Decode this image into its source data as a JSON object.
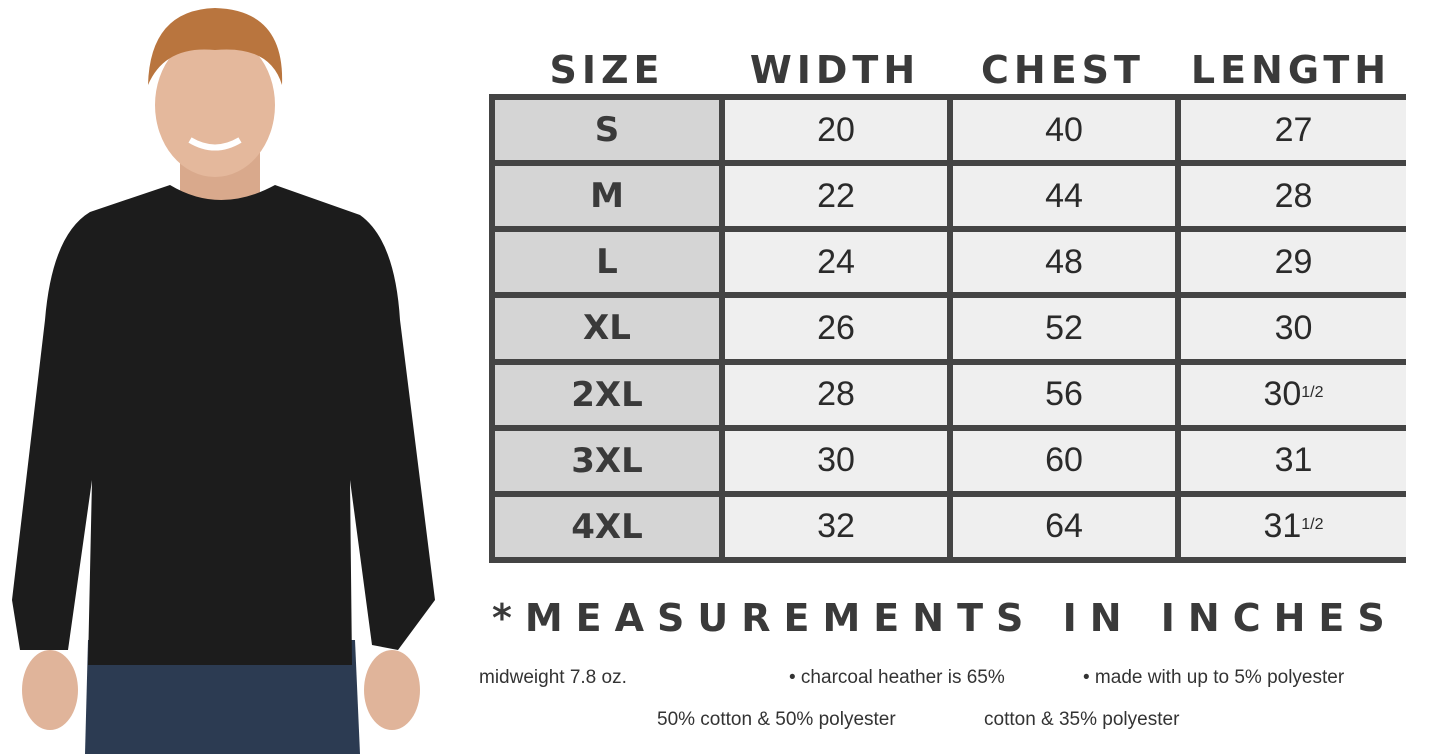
{
  "headers": [
    "SIZE",
    "WIDTH",
    "CHEST",
    "LENGTH"
  ],
  "rows": [
    {
      "size": "S",
      "width": "20",
      "chest": "40",
      "length": "27",
      "length_frac": ""
    },
    {
      "size": "M",
      "width": "22",
      "chest": "44",
      "length": "28",
      "length_frac": ""
    },
    {
      "size": "L",
      "width": "24",
      "chest": "48",
      "length": "29",
      "length_frac": ""
    },
    {
      "size": "XL",
      "width": "26",
      "chest": "52",
      "length": "30",
      "length_frac": ""
    },
    {
      "size": "2XL",
      "width": "28",
      "chest": "56",
      "length": "30",
      "length_frac": "1/2"
    },
    {
      "size": "3XL",
      "width": "30",
      "chest": "60",
      "length": "31",
      "length_frac": ""
    },
    {
      "size": "4XL",
      "width": "32",
      "chest": "64",
      "length": "31",
      "length_frac": "1/2"
    }
  ],
  "note": "*MEASUREMENTS IN INCHES",
  "details": {
    "weight": "midweight 7.8 oz.",
    "blend_a_line1": "• charcoal heather is 65%",
    "blend_b_line1": "• made with up to 5% polyester",
    "blend_b_line2": "50% cotton & 50% polyester",
    "blend_a_line2": "cotton & 35% polyester"
  },
  "colors": {
    "border": "#444444",
    "size_cell": "#d5d5d5",
    "value_cell": "#efefef",
    "sweatshirt": "#1c1c1c"
  }
}
